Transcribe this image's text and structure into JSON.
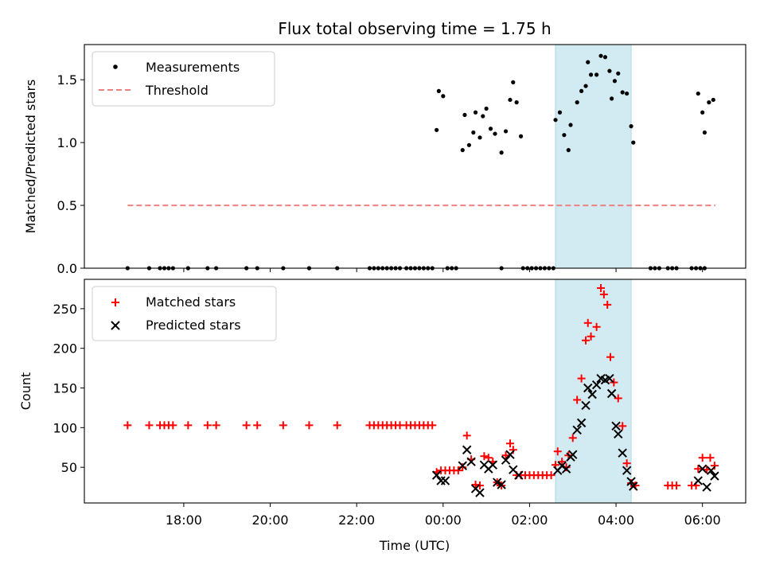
{
  "chart_data": [
    {
      "type": "scatter",
      "title": "Flux total observing time = 1.75 h",
      "xlabel": "",
      "ylabel": "Matched/Predicted stars",
      "xlim_hours": [
        15.7,
        31.0
      ],
      "ylim": [
        0,
        1.78
      ],
      "yticks": [
        0.0,
        0.5,
        1.0,
        1.5
      ],
      "ytick_labels": [
        "0.0",
        "0.5",
        "1.0",
        "1.5"
      ],
      "xticks_hours": [
        18,
        20,
        22,
        24,
        26,
        28,
        30
      ],
      "legend": {
        "placement": "upper-left",
        "entries": [
          "Measurements",
          "Threshold"
        ]
      },
      "colors": {
        "measurements": "#000000",
        "threshold": "#f08080",
        "highlight": "#add8e6"
      },
      "highlight_span_hours": [
        26.6,
        28.35
      ],
      "threshold": {
        "y": 0.5,
        "x_range_hours": [
          16.7,
          30.3
        ]
      },
      "series": [
        {
          "name": "Measurements",
          "points": [
            [
              16.7,
              0
            ],
            [
              17.2,
              0
            ],
            [
              17.45,
              0
            ],
            [
              17.55,
              0
            ],
            [
              17.65,
              0
            ],
            [
              17.75,
              0
            ],
            [
              18.1,
              0
            ],
            [
              18.55,
              0
            ],
            [
              18.75,
              0
            ],
            [
              19.45,
              0
            ],
            [
              19.7,
              0
            ],
            [
              20.3,
              0
            ],
            [
              20.9,
              0
            ],
            [
              21.55,
              0
            ],
            [
              22.3,
              0
            ],
            [
              22.4,
              0
            ],
            [
              22.5,
              0
            ],
            [
              22.6,
              0
            ],
            [
              22.7,
              0
            ],
            [
              22.8,
              0
            ],
            [
              22.9,
              0
            ],
            [
              23.0,
              0
            ],
            [
              23.15,
              0
            ],
            [
              23.25,
              0
            ],
            [
              23.35,
              0
            ],
            [
              23.45,
              0
            ],
            [
              23.55,
              0
            ],
            [
              23.65,
              0
            ],
            [
              23.75,
              0
            ],
            [
              24.1,
              0
            ],
            [
              24.2,
              0
            ],
            [
              24.3,
              0
            ],
            [
              25.35,
              0
            ],
            [
              25.85,
              0
            ],
            [
              25.95,
              0
            ],
            [
              26.05,
              0
            ],
            [
              26.15,
              0
            ],
            [
              26.25,
              0
            ],
            [
              26.35,
              0
            ],
            [
              26.45,
              0
            ],
            [
              26.55,
              0
            ],
            [
              28.8,
              0
            ],
            [
              28.9,
              0
            ],
            [
              29.0,
              0
            ],
            [
              29.2,
              0
            ],
            [
              29.3,
              0
            ],
            [
              29.4,
              0
            ],
            [
              29.75,
              0
            ],
            [
              29.85,
              0
            ],
            [
              29.95,
              0
            ],
            [
              30.05,
              0
            ],
            [
              23.85,
              1.1
            ],
            [
              23.9,
              1.41
            ],
            [
              24.0,
              1.37
            ],
            [
              24.45,
              0.94
            ],
            [
              24.5,
              1.22
            ],
            [
              24.6,
              0.98
            ],
            [
              24.7,
              1.08
            ],
            [
              24.75,
              1.24
            ],
            [
              24.85,
              1.04
            ],
            [
              24.92,
              1.21
            ],
            [
              25.0,
              1.27
            ],
            [
              25.1,
              1.11
            ],
            [
              25.2,
              1.07
            ],
            [
              25.35,
              0.92
            ],
            [
              25.45,
              1.09
            ],
            [
              25.55,
              1.34
            ],
            [
              25.62,
              1.48
            ],
            [
              25.7,
              1.32
            ],
            [
              25.8,
              1.05
            ],
            [
              26.6,
              1.18
            ],
            [
              26.7,
              1.24
            ],
            [
              26.8,
              1.06
            ],
            [
              26.9,
              0.94
            ],
            [
              26.95,
              1.14
            ],
            [
              27.1,
              1.32
            ],
            [
              27.2,
              1.41
            ],
            [
              27.3,
              1.45
            ],
            [
              27.35,
              1.64
            ],
            [
              27.42,
              1.54
            ],
            [
              27.55,
              1.54
            ],
            [
              27.65,
              1.69
            ],
            [
              27.75,
              1.68
            ],
            [
              27.85,
              1.57
            ],
            [
              27.9,
              1.35
            ],
            [
              27.97,
              1.49
            ],
            [
              28.05,
              1.55
            ],
            [
              28.15,
              1.4
            ],
            [
              28.25,
              1.39
            ],
            [
              28.35,
              1.13
            ],
            [
              28.4,
              1.0
            ],
            [
              29.9,
              1.39
            ],
            [
              30.0,
              1.24
            ],
            [
              30.05,
              1.08
            ],
            [
              30.15,
              1.32
            ],
            [
              30.25,
              1.34
            ]
          ]
        }
      ]
    },
    {
      "type": "scatter",
      "title": "",
      "xlabel": "Time (UTC)",
      "ylabel": "Count",
      "xlim_hours": [
        15.7,
        31.0
      ],
      "ylim": [
        5,
        287
      ],
      "yticks": [
        50,
        100,
        150,
        200,
        250
      ],
      "ytick_labels": [
        "50",
        "100",
        "150",
        "200",
        "250"
      ],
      "xticks_hours": [
        18,
        20,
        22,
        24,
        26,
        28,
        30
      ],
      "xtick_labels": [
        "18:00",
        "20:00",
        "22:00",
        "00:00",
        "02:00",
        "04:00",
        "06:00"
      ],
      "legend": {
        "placement": "upper-left",
        "entries": [
          "Matched stars",
          "Predicted stars"
        ]
      },
      "colors": {
        "matched": "#ff0000",
        "predicted": "#000000",
        "highlight": "#add8e6"
      },
      "highlight_span_hours": [
        26.6,
        28.35
      ],
      "series": [
        {
          "name": "Matched stars",
          "marker": "plus",
          "points": [
            [
              16.7,
              103
            ],
            [
              17.2,
              103
            ],
            [
              17.45,
              103
            ],
            [
              17.55,
              103
            ],
            [
              17.65,
              103
            ],
            [
              17.75,
              103
            ],
            [
              18.1,
              103
            ],
            [
              18.55,
              103
            ],
            [
              18.75,
              103
            ],
            [
              19.45,
              103
            ],
            [
              19.7,
              103
            ],
            [
              20.3,
              103
            ],
            [
              20.9,
              103
            ],
            [
              21.55,
              103
            ],
            [
              22.3,
              103
            ],
            [
              22.4,
              103
            ],
            [
              22.5,
              103
            ],
            [
              22.6,
              103
            ],
            [
              22.7,
              103
            ],
            [
              22.8,
              103
            ],
            [
              22.9,
              103
            ],
            [
              23.0,
              103
            ],
            [
              23.15,
              103
            ],
            [
              23.25,
              103
            ],
            [
              23.35,
              103
            ],
            [
              23.45,
              103
            ],
            [
              23.55,
              103
            ],
            [
              23.65,
              103
            ],
            [
              23.75,
              103
            ],
            [
              23.85,
              44
            ],
            [
              23.95,
              46
            ],
            [
              24.05,
              46
            ],
            [
              24.15,
              46
            ],
            [
              24.25,
              46
            ],
            [
              24.35,
              46
            ],
            [
              24.45,
              50
            ],
            [
              24.55,
              90
            ],
            [
              24.65,
              60
            ],
            [
              24.75,
              28
            ],
            [
              24.85,
              27
            ],
            [
              24.95,
              64
            ],
            [
              25.05,
              62
            ],
            [
              25.15,
              57
            ],
            [
              25.25,
              31
            ],
            [
              25.35,
              27
            ],
            [
              25.45,
              65
            ],
            [
              25.55,
              80
            ],
            [
              25.62,
              72
            ],
            [
              25.7,
              40
            ],
            [
              25.8,
              40
            ],
            [
              25.9,
              40
            ],
            [
              26.0,
              40
            ],
            [
              26.1,
              40
            ],
            [
              26.2,
              40
            ],
            [
              26.3,
              40
            ],
            [
              26.4,
              40
            ],
            [
              26.5,
              40
            ],
            [
              26.6,
              53
            ],
            [
              26.65,
              70
            ],
            [
              26.75,
              57
            ],
            [
              26.85,
              50
            ],
            [
              26.9,
              65
            ],
            [
              27.0,
              87
            ],
            [
              27.1,
              135
            ],
            [
              27.2,
              162
            ],
            [
              27.3,
              210
            ],
            [
              27.35,
              232
            ],
            [
              27.42,
              215
            ],
            [
              27.55,
              227
            ],
            [
              27.65,
              276
            ],
            [
              27.72,
              268
            ],
            [
              27.8,
              255
            ],
            [
              27.87,
              189
            ],
            [
              27.95,
              157
            ],
            [
              28.05,
              137
            ],
            [
              28.15,
              102
            ],
            [
              28.25,
              55
            ],
            [
              28.35,
              30
            ],
            [
              28.45,
              27
            ],
            [
              29.2,
              27
            ],
            [
              29.3,
              27
            ],
            [
              29.4,
              27
            ],
            [
              29.75,
              27
            ],
            [
              29.85,
              27
            ],
            [
              29.9,
              48
            ],
            [
              30.0,
              62
            ],
            [
              30.1,
              47
            ],
            [
              30.18,
              62
            ],
            [
              30.28,
              52
            ]
          ]
        },
        {
          "name": "Predicted stars",
          "marker": "x",
          "points": [
            [
              23.85,
              40
            ],
            [
              23.95,
              33
            ],
            [
              24.05,
              33
            ],
            [
              24.45,
              52
            ],
            [
              24.55,
              72
            ],
            [
              24.65,
              57
            ],
            [
              24.75,
              23
            ],
            [
              24.85,
              18
            ],
            [
              24.95,
              53
            ],
            [
              25.05,
              48
            ],
            [
              25.15,
              53
            ],
            [
              25.25,
              31
            ],
            [
              25.35,
              28
            ],
            [
              25.45,
              59
            ],
            [
              25.55,
              66
            ],
            [
              25.62,
              47
            ],
            [
              25.75,
              40
            ],
            [
              26.65,
              46
            ],
            [
              26.75,
              52
            ],
            [
              26.85,
              48
            ],
            [
              26.95,
              63
            ],
            [
              27.0,
              66
            ],
            [
              27.1,
              97
            ],
            [
              27.2,
              106
            ],
            [
              27.3,
              128
            ],
            [
              27.35,
              150
            ],
            [
              27.45,
              142
            ],
            [
              27.55,
              154
            ],
            [
              27.65,
              162
            ],
            [
              27.75,
              160
            ],
            [
              27.85,
              162
            ],
            [
              27.9,
              143
            ],
            [
              28.0,
              102
            ],
            [
              28.05,
              92
            ],
            [
              28.15,
              68
            ],
            [
              28.25,
              46
            ],
            [
              28.35,
              32
            ],
            [
              28.4,
              26
            ],
            [
              29.9,
              33
            ],
            [
              30.0,
              48
            ],
            [
              30.1,
              25
            ],
            [
              30.2,
              46
            ],
            [
              30.28,
              39
            ]
          ]
        }
      ]
    }
  ]
}
